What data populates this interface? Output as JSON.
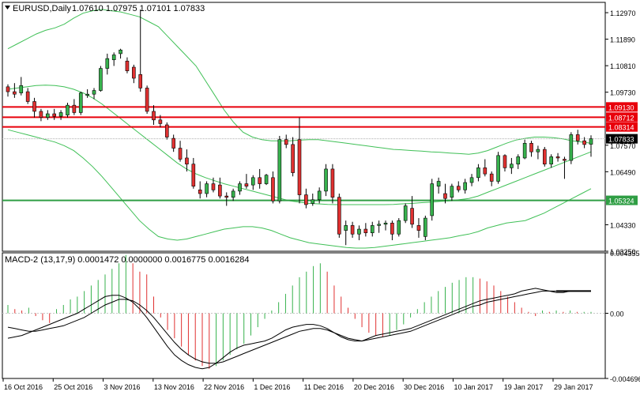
{
  "chart_header": {
    "symbol": "EURUSD,Daily",
    "ohlc": "1.07610 1.07975 1.07101 1.07833"
  },
  "macd_header": {
    "label": "MACD-2 (13,17,9) 0.0001472 0.0000000 0.0016775 0.0016284"
  },
  "colors": {
    "bull": "#37b24d",
    "bear": "#e03131",
    "band": "#40c057",
    "resistance": "#e8000b",
    "support": "#2f9e44",
    "price_tag_bg": "#000000",
    "grid": "#000000",
    "frame": "#000000"
  },
  "chart_data": [
    {
      "type": "candlestick",
      "title": "EURUSD,Daily",
      "ylim": [
        1.0325,
        1.1339
      ],
      "y_ticks": [
        "1.12970",
        "1.11890",
        "1.10810",
        "1.09730",
        "1.07570",
        "1.06490",
        "1.04330",
        "1.03250"
      ],
      "x_ticks": [
        "16 Oct 2016",
        "25 Oct 2016",
        "3 Nov 2016",
        "13 Nov 2016",
        "22 Nov 2016",
        "1 Dec 2016",
        "11 Dec 2016",
        "20 Dec 2016",
        "30 Dec 2016",
        "10 Jan 2017",
        "19 Jan 2017",
        "29 Jan 2017"
      ],
      "horizontal_levels": [
        {
          "label": "1.09130",
          "value": 1.0913,
          "kind": "resistance"
        },
        {
          "label": "1.08712",
          "value": 1.08712,
          "kind": "resistance"
        },
        {
          "label": "1.08314",
          "value": 1.08314,
          "kind": "resistance"
        },
        {
          "label": "1.05324",
          "value": 1.05324,
          "kind": "support"
        }
      ],
      "current_price_label": "1.07833",
      "candles": [
        [
          1.0995,
          1.1005,
          1.0955,
          1.0975
        ],
        [
          1.0975,
          1.101,
          1.095,
          1.0965
        ],
        [
          1.097,
          1.1035,
          1.096,
          1.1
        ],
        [
          1.0975,
          1.099,
          1.0925,
          1.0935
        ],
        [
          1.0935,
          1.095,
          1.087,
          1.0895
        ],
        [
          1.0895,
          1.0905,
          1.0855,
          1.087
        ],
        [
          1.087,
          1.09,
          1.086,
          1.0885
        ],
        [
          1.0885,
          1.0905,
          1.086,
          1.0875
        ],
        [
          1.0875,
          1.09,
          1.086,
          1.089
        ],
        [
          1.088,
          1.093,
          1.087,
          1.092
        ],
        [
          1.092,
          1.0945,
          1.088,
          1.089
        ],
        [
          1.089,
          1.0975,
          1.088,
          1.097
        ],
        [
          1.096,
          1.0985,
          1.095,
          1.0965
        ],
        [
          1.0965,
          1.099,
          1.0945,
          1.098
        ],
        [
          1.098,
          1.108,
          1.0975,
          1.107
        ],
        [
          1.107,
          1.113,
          1.1045,
          1.111
        ],
        [
          1.1105,
          1.1135,
          1.108,
          1.1125
        ],
        [
          1.113,
          1.115,
          1.111,
          1.1145
        ],
        [
          1.11,
          1.1115,
          1.105,
          1.106
        ],
        [
          1.1075,
          1.1085,
          1.101,
          1.103
        ],
        [
          1.1045,
          1.131,
          1.0975,
          1.099
        ],
        [
          1.099,
          1.1,
          1.0885,
          1.0895
        ],
        [
          1.0895,
          1.092,
          1.084,
          1.086
        ],
        [
          1.086,
          1.088,
          1.083,
          1.0845
        ],
        [
          1.084,
          1.085,
          1.078,
          1.079
        ],
        [
          1.0785,
          1.08,
          1.073,
          1.0745
        ],
        [
          1.0745,
          1.0775,
          1.069,
          1.07
        ],
        [
          1.0705,
          1.074,
          1.065,
          1.068
        ],
        [
          1.068,
          1.0705,
          1.058,
          1.059
        ],
        [
          1.0575,
          1.061,
          1.054,
          1.056
        ],
        [
          1.056,
          1.061,
          1.0545,
          1.06
        ],
        [
          1.06,
          1.0625,
          1.0565,
          1.0575
        ],
        [
          1.0595,
          1.0625,
          1.054,
          1.055
        ],
        [
          1.055,
          1.0565,
          1.051,
          1.0545
        ],
        [
          1.0545,
          1.058,
          1.053,
          1.057
        ],
        [
          1.057,
          1.061,
          1.0555,
          1.06
        ],
        [
          1.06,
          1.064,
          1.058,
          1.059
        ],
        [
          1.0595,
          1.0635,
          1.0575,
          1.0625
        ],
        [
          1.0625,
          1.066,
          1.058,
          1.06
        ],
        [
          1.06,
          1.064,
          1.0595,
          1.0635
        ],
        [
          1.0625,
          1.065,
          1.052,
          1.053
        ],
        [
          1.053,
          1.0795,
          1.052,
          1.078
        ],
        [
          1.078,
          1.08,
          1.0745,
          1.076
        ],
        [
          1.076,
          1.079,
          1.063,
          1.0645
        ],
        [
          1.078,
          1.087,
          1.052,
          1.0555
        ],
        [
          1.0555,
          1.058,
          1.05,
          1.0515
        ],
        [
          1.052,
          1.056,
          1.051,
          1.0535
        ],
        [
          1.0535,
          1.0585,
          1.052,
          1.057
        ],
        [
          1.057,
          1.068,
          1.055,
          1.066
        ],
        [
          1.066,
          1.068,
          1.052,
          1.0545
        ],
        [
          1.0545,
          1.056,
          1.038,
          1.0395
        ],
        [
          1.041,
          1.045,
          1.035,
          1.043
        ],
        [
          1.043,
          1.0445,
          1.038,
          1.0395
        ],
        [
          1.0395,
          1.043,
          1.037,
          1.0415
        ],
        [
          1.0415,
          1.044,
          1.0385,
          1.04
        ],
        [
          1.04,
          1.0445,
          1.0385,
          1.043
        ],
        [
          1.043,
          1.045,
          1.04,
          1.0435
        ],
        [
          1.0435,
          1.045,
          1.041,
          1.044
        ],
        [
          1.044,
          1.045,
          1.037,
          1.0395
        ],
        [
          1.0395,
          1.046,
          1.0385,
          1.045
        ],
        [
          1.045,
          1.052,
          1.044,
          1.051
        ],
        [
          1.05,
          1.055,
          1.042,
          1.0435
        ],
        [
          1.043,
          1.046,
          1.038,
          1.041
        ],
        [
          1.0385,
          1.047,
          1.037,
          1.046
        ],
        [
          1.047,
          1.062,
          1.045,
          1.06
        ],
        [
          1.059,
          1.0625,
          1.056,
          1.061
        ],
        [
          1.056,
          1.06,
          1.052,
          1.054
        ],
        [
          1.0545,
          1.06,
          1.053,
          1.059
        ],
        [
          1.059,
          1.061,
          1.0565,
          1.0575
        ],
        [
          1.0575,
          1.062,
          1.056,
          1.0605
        ],
        [
          1.0605,
          1.064,
          1.059,
          1.0625
        ],
        [
          1.0625,
          1.068,
          1.061,
          1.0665
        ],
        [
          1.0665,
          1.07,
          1.063,
          1.064
        ],
        [
          1.064,
          1.065,
          1.059,
          1.061
        ],
        [
          1.061,
          1.073,
          1.06,
          1.0715
        ],
        [
          1.0715,
          1.072,
          1.065,
          1.0665
        ],
        [
          1.0665,
          1.0705,
          1.064,
          1.068
        ],
        [
          1.068,
          1.072,
          1.066,
          1.071
        ],
        [
          1.0705,
          1.078,
          1.07,
          1.0765
        ],
        [
          1.0765,
          1.0775,
          1.071,
          1.073
        ],
        [
          1.073,
          1.0755,
          1.07,
          1.074
        ],
        [
          1.074,
          1.075,
          1.067,
          1.068
        ],
        [
          1.068,
          1.072,
          1.0665,
          1.071
        ],
        [
          1.071,
          1.0725,
          1.069,
          1.0705
        ],
        [
          1.07,
          1.071,
          1.062,
          1.0695
        ],
        [
          1.0695,
          1.081,
          1.068,
          1.08
        ],
        [
          1.08,
          1.082,
          1.076,
          1.0775
        ],
        [
          1.0775,
          1.079,
          1.0745,
          1.076
        ],
        [
          1.0761,
          1.07975,
          1.07101,
          1.07833
        ]
      ],
      "bands": {
        "upper": [
          1.115,
          1.117,
          1.119,
          1.121,
          1.1225,
          1.1235,
          1.125,
          1.1275,
          1.1295,
          1.1305,
          1.131,
          1.1305,
          1.13,
          1.129,
          1.128,
          1.126,
          1.124,
          1.12,
          1.116,
          1.112,
          1.108,
          1.102,
          1.096,
          1.09,
          1.085,
          1.081,
          1.079,
          1.078,
          1.0775,
          1.0775,
          1.0775,
          1.0778,
          1.078,
          1.078,
          1.0775,
          1.077,
          1.0765,
          1.076,
          1.0755,
          1.075,
          1.0745,
          1.074,
          1.0738,
          1.0735,
          1.0733,
          1.073,
          1.0728,
          1.0725,
          1.0723,
          1.072,
          1.0725,
          1.0735,
          1.075,
          1.0765,
          1.0778,
          1.0785,
          1.079,
          1.079,
          1.0788,
          1.0783,
          1.0775,
          1.077,
          1.0765
        ],
        "middle": [
          1.0985,
          1.099,
          1.0995,
          1.1,
          1.1002,
          1.1,
          1.0995,
          1.0985,
          1.097,
          1.095,
          1.0925,
          1.0895,
          1.0865,
          1.0835,
          1.0805,
          1.0775,
          1.0745,
          1.0715,
          1.0685,
          1.066,
          1.064,
          1.0625,
          1.0612,
          1.06,
          1.059,
          1.058,
          1.057,
          1.056,
          1.055,
          1.054,
          1.053,
          1.0525,
          1.052,
          1.0518,
          1.0516,
          1.0515,
          1.0515,
          1.0515,
          1.0515,
          1.0515,
          1.0515,
          1.0516,
          1.0518,
          1.052,
          1.0523,
          1.0525,
          1.0528,
          1.053,
          1.0535,
          1.054,
          1.055,
          1.0565,
          1.058,
          1.0595,
          1.061,
          1.0625,
          1.064,
          1.0655,
          1.067,
          1.0685,
          1.07,
          1.0715,
          1.073
        ],
        "lower": [
          1.082,
          1.081,
          1.08,
          1.079,
          1.078,
          1.077,
          1.0755,
          1.0735,
          1.0705,
          1.067,
          1.063,
          1.0585,
          1.054,
          1.0495,
          1.045,
          1.0415,
          1.0385,
          1.0375,
          1.037,
          1.0375,
          1.0385,
          1.0395,
          1.0405,
          1.0415,
          1.042,
          1.0425,
          1.0425,
          1.042,
          1.041,
          1.0395,
          1.038,
          1.037,
          1.036,
          1.0355,
          1.035,
          1.0345,
          1.034,
          1.0338,
          1.0338,
          1.034,
          1.0345,
          1.035,
          1.0355,
          1.036,
          1.0365,
          1.037,
          1.0375,
          1.038,
          1.0388,
          1.0395,
          1.0405,
          1.042,
          1.043,
          1.044,
          1.0445,
          1.045,
          1.0465,
          1.048,
          1.05,
          1.052,
          1.054,
          1.056,
          1.058
        ]
      }
    },
    {
      "type": "bar",
      "title": "MACD-2 (13,17,9) 0.0001472 0.0000000 0.0016775 0.0016284",
      "ylim": [
        -0.004696,
        0.004355
      ],
      "y_ticks": [
        "0.004355",
        "0.00",
        "-0.004696"
      ],
      "histogram": [
        0.0006,
        0.0003,
        0.0002,
        0.0004,
        -0.0002,
        -0.0005,
        -0.0007,
        0.0003,
        0.0006,
        0.001,
        0.0012,
        0.0016,
        0.002,
        0.0024,
        0.0028,
        0.0032,
        0.0036,
        0.0042,
        0.0036,
        0.003,
        0.0028,
        0.0012,
        -0.0003,
        -0.0012,
        -0.0018,
        -0.0024,
        -0.003,
        -0.0034,
        -0.0038,
        -0.004,
        -0.0038,
        -0.0034,
        -0.003,
        -0.0026,
        -0.0022,
        -0.0016,
        -0.001,
        -0.0004,
        0.0002,
        0.0008,
        0.0014,
        0.002,
        0.0026,
        0.003,
        0.0034,
        0.0036,
        0.003,
        0.002,
        0.0012,
        0.0004,
        -0.0004,
        -0.001,
        -0.0014,
        -0.0016,
        -0.0017,
        -0.0016,
        -0.0012,
        -0.0008,
        -0.0003,
        0.0003,
        0.0008,
        0.0012,
        0.0016,
        0.0019,
        0.0022,
        0.0024,
        0.0026,
        0.0026,
        0.0025,
        0.0023,
        0.002,
        0.0016,
        0.0012,
        0.0008,
        0.0004,
        0.0001,
        -0.0002,
        0.0002,
        0.0001,
        0.0002,
        0.0001,
        0.0002,
        0.0001,
        0.0001,
        0.0001
      ],
      "macd_line": [
        -0.0018,
        -0.0017,
        -0.0016,
        -0.0014,
        -0.0012,
        -0.001,
        -0.0008,
        -0.0006,
        -0.0004,
        -0.0002,
        0.0,
        0.0003,
        0.0006,
        0.0009,
        0.0012,
        0.0013,
        0.0013,
        0.0011,
        0.0008,
        0.0003,
        -0.0003,
        -0.001,
        -0.0017,
        -0.0024,
        -0.003,
        -0.0034,
        -0.0037,
        -0.0039,
        -0.004,
        -0.0039,
        -0.0036,
        -0.0032,
        -0.0028,
        -0.0025,
        -0.0023,
        -0.0022,
        -0.0021,
        -0.002,
        -0.0018,
        -0.0015,
        -0.0012,
        -0.001,
        -0.0009,
        -0.0008,
        -0.0008,
        -0.0009,
        -0.0011,
        -0.0014,
        -0.0017,
        -0.0019,
        -0.002,
        -0.002,
        -0.0018,
        -0.0016,
        -0.0015,
        -0.0014,
        -0.0013,
        -0.0012,
        -0.0011,
        -0.0009,
        -0.0007,
        -0.0005,
        -0.0003,
        -0.0001,
        0.0001,
        0.0003,
        0.0005,
        0.0007,
        0.0009,
        0.001,
        0.0011,
        0.0012,
        0.0013,
        0.0014,
        0.0016,
        0.0017,
        0.0018,
        0.0017,
        0.0016,
        0.0015,
        0.0015,
        0.0016,
        0.0016,
        0.0016,
        0.0016
      ],
      "signal_line": [
        -0.001,
        -0.0011,
        -0.0012,
        -0.0013,
        -0.0013,
        -0.0012,
        -0.0011,
        -0.001,
        -0.0009,
        -0.0007,
        -0.0005,
        -0.0003,
        0.0,
        0.0003,
        0.0006,
        0.0008,
        0.001,
        0.001,
        0.0009,
        0.0006,
        0.0002,
        -0.0003,
        -0.0009,
        -0.0015,
        -0.0021,
        -0.0026,
        -0.003,
        -0.0033,
        -0.0035,
        -0.0036,
        -0.0036,
        -0.0035,
        -0.0033,
        -0.0031,
        -0.0029,
        -0.0027,
        -0.0025,
        -0.0023,
        -0.0021,
        -0.0019,
        -0.0017,
        -0.0015,
        -0.0013,
        -0.0012,
        -0.0011,
        -0.0011,
        -0.0012,
        -0.0014,
        -0.0016,
        -0.0018,
        -0.0019,
        -0.002,
        -0.0019,
        -0.0018,
        -0.0017,
        -0.0016,
        -0.0015,
        -0.0014,
        -0.0013,
        -0.0011,
        -0.0009,
        -0.0007,
        -0.0005,
        -0.0003,
        -0.0001,
        0.0001,
        0.0003,
        0.0005,
        0.0006,
        0.0008,
        0.0009,
        0.001,
        0.0011,
        0.0012,
        0.0013,
        0.0014,
        0.0015,
        0.0016,
        0.0016,
        0.0016,
        0.0016,
        0.0016,
        0.0016,
        0.0016,
        0.0016
      ]
    }
  ]
}
